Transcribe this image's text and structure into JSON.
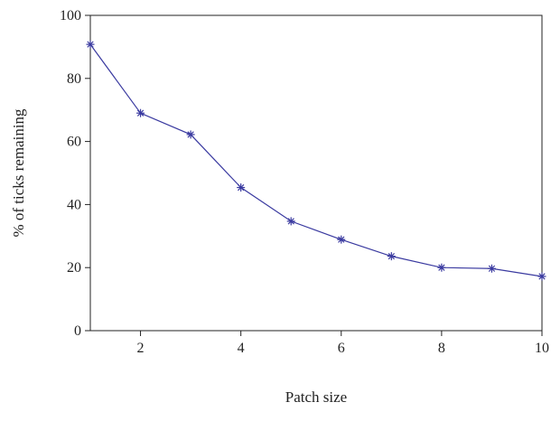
{
  "chart_data": {
    "type": "line",
    "title": "",
    "xlabel": "Patch size",
    "ylabel": "% of ticks remaining",
    "xlim": [
      1,
      10
    ],
    "ylim": [
      0,
      100
    ],
    "x_ticks": [
      2,
      4,
      6,
      8,
      10
    ],
    "y_ticks": [
      0,
      20,
      40,
      60,
      80,
      100
    ],
    "grid": false,
    "legend": "none",
    "marker": "asterisk",
    "line_color": "#3a3aa0",
    "series": [
      {
        "x": [
          1,
          2,
          3,
          4,
          5,
          6,
          7,
          8,
          9,
          10
        ],
        "y": [
          90.8,
          69,
          62.2,
          45.4,
          34.7,
          28.9,
          23.6,
          20,
          19.7,
          17.2
        ]
      }
    ]
  }
}
